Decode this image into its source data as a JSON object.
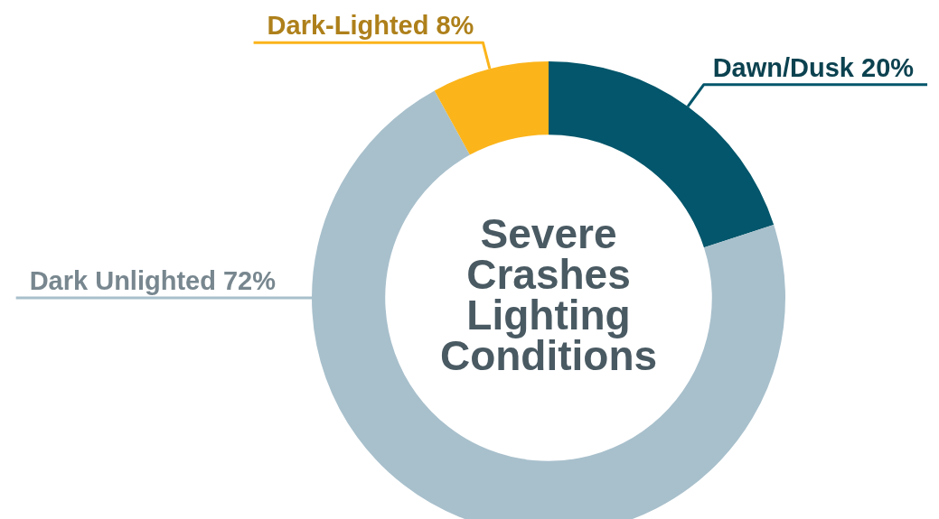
{
  "chart_data": {
    "type": "donut",
    "title": "Severe Crashes Lighting Conditions",
    "categories": [
      "Dawn/Dusk",
      "Dark Unlighted",
      "Dark-Lighted"
    ],
    "values": [
      20,
      72,
      8
    ],
    "value_labels": [
      "20%",
      "72%",
      "8%"
    ],
    "colors": [
      "#03566b",
      "#a8c0cc",
      "#fbb41a"
    ],
    "legend": false
  }
}
